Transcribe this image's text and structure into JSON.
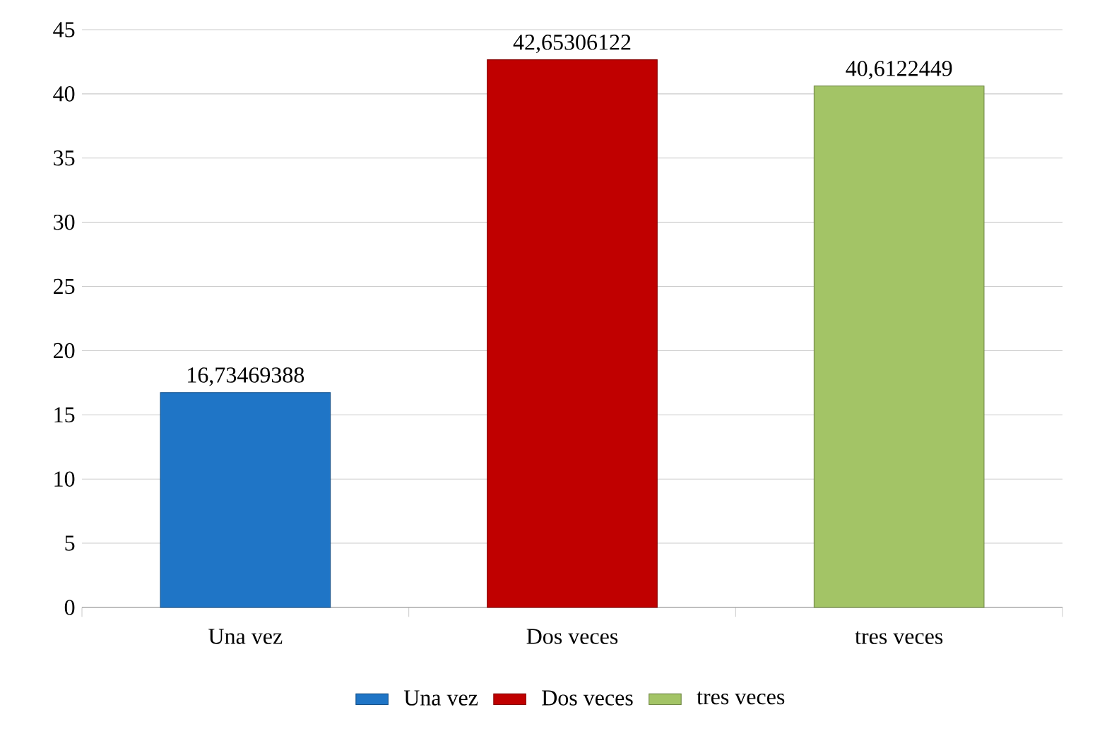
{
  "chart_data": {
    "type": "bar",
    "categories": [
      "Una vez",
      "Dos veces",
      "tres veces"
    ],
    "series": [
      {
        "name": "Una vez",
        "color": "#1f75c6",
        "values": [
          16.73469388,
          null,
          null
        ],
        "value_labels": [
          "16,73469388",
          null,
          null
        ]
      },
      {
        "name": "Dos veces",
        "color": "#c00000",
        "values": [
          null,
          42.65306122,
          null
        ],
        "value_labels": [
          null,
          "42,65306122",
          null
        ]
      },
      {
        "name": "tres veces",
        "color": "#a3c466",
        "values": [
          null,
          null,
          40.6122449
        ],
        "value_labels": [
          null,
          null,
          "40,6122449"
        ]
      }
    ],
    "ylim": [
      0,
      45
    ],
    "yticks": [
      0,
      5,
      10,
      15,
      20,
      25,
      30,
      35,
      40,
      45
    ],
    "grid": "y",
    "legend": "bottom"
  }
}
